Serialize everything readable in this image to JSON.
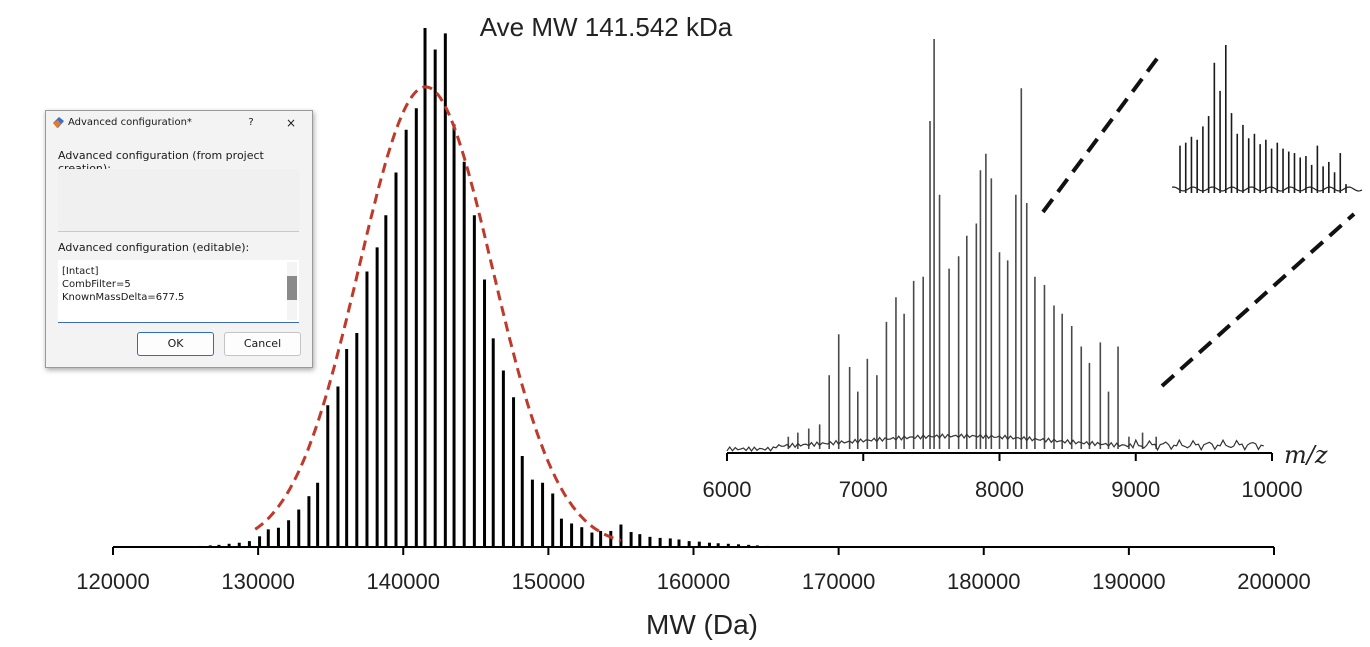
{
  "chart_data": [
    {
      "type": "bar",
      "title": "Ave MW 141.542 kDa",
      "xlabel": "MW (Da)",
      "ylabel": "",
      "xlim": [
        120000,
        200000
      ],
      "ylim": [
        0,
        1.0
      ],
      "grid": false,
      "x_ticks": [
        "120000",
        "130000",
        "140000",
        "150000",
        "160000",
        "170000",
        "180000",
        "190000",
        "200000"
      ],
      "spacing": 677.5,
      "peaks": [
        [
          126000,
          0.002
        ],
        [
          126700,
          0.003
        ],
        [
          127300,
          0.004
        ],
        [
          128000,
          0.006
        ],
        [
          128700,
          0.008
        ],
        [
          129400,
          0.011
        ],
        [
          130100,
          0.02
        ],
        [
          130700,
          0.033
        ],
        [
          131400,
          0.036
        ],
        [
          132100,
          0.05
        ],
        [
          132800,
          0.07
        ],
        [
          133500,
          0.095
        ],
        [
          134100,
          0.12
        ],
        [
          134800,
          0.265
        ],
        [
          135500,
          0.3
        ],
        [
          136100,
          0.37
        ],
        [
          136800,
          0.4
        ],
        [
          137500,
          0.515
        ],
        [
          138200,
          0.56
        ],
        [
          138800,
          0.62
        ],
        [
          139500,
          0.7
        ],
        [
          140200,
          0.78
        ],
        [
          140900,
          0.82
        ],
        [
          141500,
          0.97
        ],
        [
          142200,
          0.93
        ],
        [
          142900,
          0.96
        ],
        [
          143500,
          0.79
        ],
        [
          144200,
          0.72
        ],
        [
          144900,
          0.62
        ],
        [
          145600,
          0.5
        ],
        [
          146200,
          0.39
        ],
        [
          146900,
          0.33
        ],
        [
          147600,
          0.28
        ],
        [
          148200,
          0.17
        ],
        [
          148900,
          0.126
        ],
        [
          149600,
          0.12
        ],
        [
          150300,
          0.1
        ],
        [
          150900,
          0.053
        ],
        [
          151600,
          0.044
        ],
        [
          152300,
          0.037
        ],
        [
          153000,
          0.027
        ],
        [
          153600,
          0.03
        ],
        [
          154300,
          0.03
        ],
        [
          155000,
          0.042
        ],
        [
          155700,
          0.028
        ],
        [
          156300,
          0.024
        ],
        [
          157000,
          0.019
        ],
        [
          157700,
          0.017
        ],
        [
          158400,
          0.016
        ],
        [
          159000,
          0.014
        ],
        [
          159700,
          0.011
        ],
        [
          160400,
          0.01
        ],
        [
          161100,
          0.008
        ],
        [
          161700,
          0.007
        ],
        [
          162400,
          0.006
        ],
        [
          163100,
          0.005
        ],
        [
          163800,
          0.004
        ],
        [
          164400,
          0.003
        ],
        [
          165100,
          0.002
        ]
      ],
      "fit": {
        "type": "gaussian",
        "center": 141542,
        "amplitude": 0.86,
        "sigma": 4600
      },
      "fit_color": "#c0392b",
      "bar_color": "#000000"
    },
    {
      "type": "line",
      "title": "",
      "xlabel": "m/z",
      "ylabel": "",
      "xlim": [
        6000,
        10000
      ],
      "ylim": [
        0,
        1.0
      ],
      "x_ticks": [
        "6000",
        "7000",
        "8000",
        "9000",
        "10000"
      ],
      "series_color": "#4a4a4a",
      "peaks": [
        [
          6450,
          0.03
        ],
        [
          6520,
          0.04
        ],
        [
          6600,
          0.05
        ],
        [
          6680,
          0.06
        ],
        [
          6750,
          0.18
        ],
        [
          6820,
          0.28
        ],
        [
          6900,
          0.2
        ],
        [
          6960,
          0.14
        ],
        [
          7030,
          0.22
        ],
        [
          7100,
          0.18
        ],
        [
          7170,
          0.31
        ],
        [
          7240,
          0.37
        ],
        [
          7300,
          0.33
        ],
        [
          7370,
          0.41
        ],
        [
          7440,
          0.42
        ],
        [
          7490,
          0.8
        ],
        [
          7520,
          1.0
        ],
        [
          7560,
          0.62
        ],
        [
          7630,
          0.44
        ],
        [
          7700,
          0.47
        ],
        [
          7760,
          0.52
        ],
        [
          7830,
          0.55
        ],
        [
          7860,
          0.68
        ],
        [
          7900,
          0.72
        ],
        [
          7940,
          0.66
        ],
        [
          8000,
          0.48
        ],
        [
          8060,
          0.46
        ],
        [
          8120,
          0.62
        ],
        [
          8160,
          0.88
        ],
        [
          8200,
          0.6
        ],
        [
          8260,
          0.42
        ],
        [
          8330,
          0.4
        ],
        [
          8400,
          0.35
        ],
        [
          8460,
          0.33
        ],
        [
          8530,
          0.3
        ],
        [
          8600,
          0.25
        ],
        [
          8660,
          0.21
        ],
        [
          8740,
          0.26
        ],
        [
          8800,
          0.14
        ],
        [
          8870,
          0.25
        ],
        [
          8950,
          0.03
        ],
        [
          9050,
          0.04
        ],
        [
          9150,
          0.03
        ]
      ]
    },
    {
      "type": "line",
      "title": "",
      "xlabel": "",
      "ylabel": "",
      "series_color": "#1a1a1a",
      "peaks": [
        [
          1,
          0.32
        ],
        [
          2,
          0.34
        ],
        [
          3,
          0.38
        ],
        [
          4,
          0.36
        ],
        [
          5,
          0.45
        ],
        [
          6,
          0.52
        ],
        [
          7,
          0.88
        ],
        [
          8,
          0.69
        ],
        [
          9,
          1.0
        ],
        [
          10,
          0.54
        ],
        [
          11,
          0.4
        ],
        [
          12,
          0.46
        ],
        [
          13,
          0.37
        ],
        [
          14,
          0.4
        ],
        [
          15,
          0.33
        ],
        [
          16,
          0.36
        ],
        [
          17,
          0.3
        ],
        [
          18,
          0.34
        ],
        [
          19,
          0.3
        ],
        [
          20,
          0.28
        ],
        [
          21,
          0.27
        ],
        [
          22,
          0.24
        ],
        [
          23,
          0.25
        ],
        [
          24,
          0.19
        ],
        [
          25,
          0.32
        ],
        [
          26,
          0.18
        ],
        [
          27,
          0.21
        ],
        [
          28,
          0.14
        ],
        [
          29,
          0.27
        ],
        [
          30,
          0.06
        ]
      ]
    }
  ],
  "dialog": {
    "title": "Advanced configuration*",
    "help": "?",
    "close": "×",
    "label_from_creation": "Advanced configuration (from project creation):",
    "label_editable": "Advanced configuration (editable):",
    "editable_text": "[Intact]\nCombFilter=5\nKnownMassDelta=677.5",
    "ok": "OK",
    "cancel": "Cancel"
  }
}
